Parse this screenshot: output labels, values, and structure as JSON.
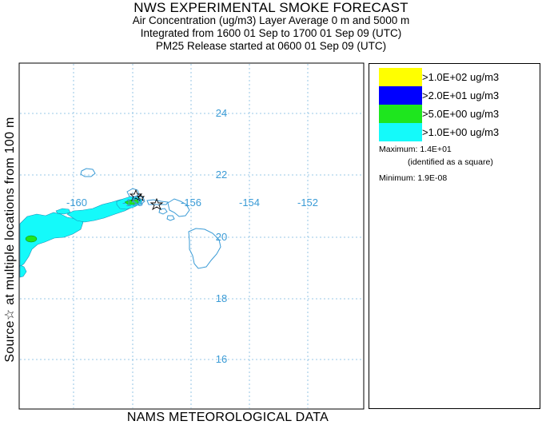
{
  "title": {
    "main": "NWS EXPERIMENTAL SMOKE FORECAST",
    "line1": "Air Concentration (ug/m3) Layer Average    0 m and  5000 m",
    "line2": "Integrated from 1600 01 Sep to 1700 01 Sep 09 (UTC)",
    "line3": "PM25 Release started at 0600 01 Sep 09 (UTC)"
  },
  "side_label": "Source☆ at multiple locations   from  100 m",
  "footer_label": "NAMS METEOROLOGICAL DATA",
  "map": {
    "lon_labels": [
      "-160",
      "-158",
      "-156",
      "-154",
      "-152"
    ],
    "lat_labels": [
      "24",
      "22",
      "20",
      "18",
      "16"
    ],
    "gridline_color": "#6aaed6",
    "coast_color": "#3a9bd6"
  },
  "legend": {
    "items": [
      {
        "label": ">1.0E+02 ug/m3",
        "color": "#ffff00"
      },
      {
        "label": ">2.0E+01 ug/m3",
        "color": "#0000ff"
      },
      {
        "label": ">5.0E+00 ug/m3",
        "color": "#1ee61e"
      },
      {
        "label": ">1.0E+00 ug/m3",
        "color": "#14fafa"
      }
    ],
    "maximum": "Maximum: 1.4E+01",
    "maximum_note": "(identified as a square)",
    "minimum": "Minimum: 1.9E-08"
  }
}
